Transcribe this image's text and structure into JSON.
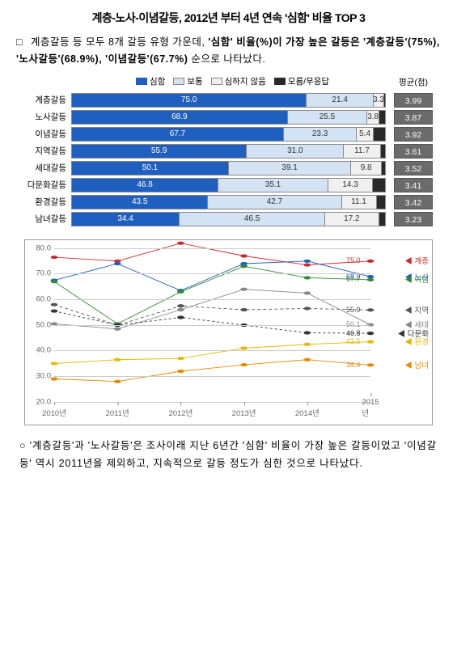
{
  "title": "계층-노사-이념갈등, 2012년 부터 4년 연속 '심함' 비율 TOP 3",
  "para1_marker": "□",
  "para1_prefix": "계층갈등 등 모두 8개 갈등 유형 가운데, ",
  "para1_bold": "'심함' 비율(%)이 가장 높은 갈등은 '계층갈등'(75%), '노사갈등'(68.9%), '이념갈등'(67.7%)",
  "para1_suffix": " 순으로 나타났다.",
  "bar": {
    "legend": [
      "심함",
      "보통",
      "심하지 않음",
      "모름/무응답"
    ],
    "colors": [
      "#1f5fbf",
      "#d3e3f4",
      "#f0f0f0",
      "#2a2a2a"
    ],
    "avg_header": "평균(점)",
    "rows": [
      {
        "label": "계층갈등",
        "vals": [
          75.0,
          21.4,
          3.3,
          0.3
        ],
        "show": [
          "75.0",
          "21.4",
          "3.3"
        ],
        "avg": "3.99"
      },
      {
        "label": "노사갈등",
        "vals": [
          68.9,
          25.5,
          3.8,
          1.8
        ],
        "show": [
          "68.9",
          "25.5",
          "3.8"
        ],
        "avg": "3.87"
      },
      {
        "label": "이념갈등",
        "vals": [
          67.7,
          23.3,
          5.4,
          3.6
        ],
        "show": [
          "67.7",
          "23.3",
          "5.4"
        ],
        "avg": "3.92"
      },
      {
        "label": "지역갈등",
        "vals": [
          55.9,
          31.0,
          11.7,
          1.4
        ],
        "show": [
          "55.9",
          "31.0",
          "11.7"
        ],
        "avg": "3.61"
      },
      {
        "label": "세대갈등",
        "vals": [
          50.1,
          39.1,
          9.8,
          1.0
        ],
        "show": [
          "50.1",
          "39.1",
          "9.8"
        ],
        "avg": "3.52"
      },
      {
        "label": "다문화갈등",
        "vals": [
          46.8,
          35.1,
          14.3,
          3.8
        ],
        "show": [
          "46.8",
          "35.1",
          "14.3"
        ],
        "avg": "3.41"
      },
      {
        "label": "환경갈등",
        "vals": [
          43.5,
          42.7,
          11.1,
          2.7
        ],
        "show": [
          "43.5",
          "42.7",
          "11.1"
        ],
        "avg": "3.42"
      },
      {
        "label": "남녀갈등",
        "vals": [
          34.4,
          46.5,
          17.2,
          1.9
        ],
        "show": [
          "34.4",
          "46.5",
          "17.2"
        ],
        "avg": "3.23"
      }
    ]
  },
  "line": {
    "ylim": [
      20,
      80
    ],
    "ytick_step": 10,
    "years": [
      "2010년",
      "2011년",
      "2012년",
      "2013년",
      "2014년",
      "2015년"
    ],
    "grid_color": "#cccccc",
    "series": [
      {
        "name": "계층",
        "color": "#cc2a2a",
        "end_val": "75.0",
        "dash": "",
        "data": [
          76.5,
          75.0,
          82.0,
          77.0,
          73.5,
          75.0
        ]
      },
      {
        "name": "노사",
        "color": "#1f5fbf",
        "end_val": "68.9",
        "dash": "",
        "data": [
          67.5,
          74.0,
          63.5,
          74.0,
          75.0,
          68.9
        ]
      },
      {
        "name": "이념",
        "color": "#2e8b2e",
        "end_val": "67.7",
        "dash": "",
        "data": [
          67.0,
          50.5,
          63.0,
          73.0,
          68.5,
          67.7
        ]
      },
      {
        "name": "지역",
        "color": "#555555",
        "end_val": "55.9",
        "dash": "4,3",
        "data": [
          58.0,
          50.0,
          57.5,
          56.0,
          56.5,
          55.9
        ]
      },
      {
        "name": "세대",
        "color": "#888888",
        "end_val": "50.1",
        "dash": "",
        "data": [
          50.5,
          48.5,
          56.0,
          64.0,
          62.5,
          50.1
        ]
      },
      {
        "name": "다문화",
        "color": "#333333",
        "end_val": "46.8",
        "dash": "3,3",
        "data": [
          55.5,
          50.0,
          53.0,
          50.0,
          47.0,
          46.8
        ]
      },
      {
        "name": "환경",
        "color": "#e6b800",
        "end_val": "43.5",
        "dash": "",
        "data": [
          35.0,
          36.5,
          37.0,
          41.0,
          42.5,
          43.5
        ]
      },
      {
        "name": "남녀",
        "color": "#e68a00",
        "end_val": "34.4",
        "dash": "",
        "data": [
          29.0,
          28.0,
          32.0,
          34.5,
          36.5,
          34.4
        ]
      }
    ]
  },
  "para2_marker": "○",
  "para2": " '계층갈등'과 '노사갈등'은 조사이래 지난 6년간 '심함' 비율이 가장 높은 갈등이었고 '이념갈등' 역시 2011년을 제외하고, 지속적으로 갈등 정도가 심한 것으로 나타났다."
}
